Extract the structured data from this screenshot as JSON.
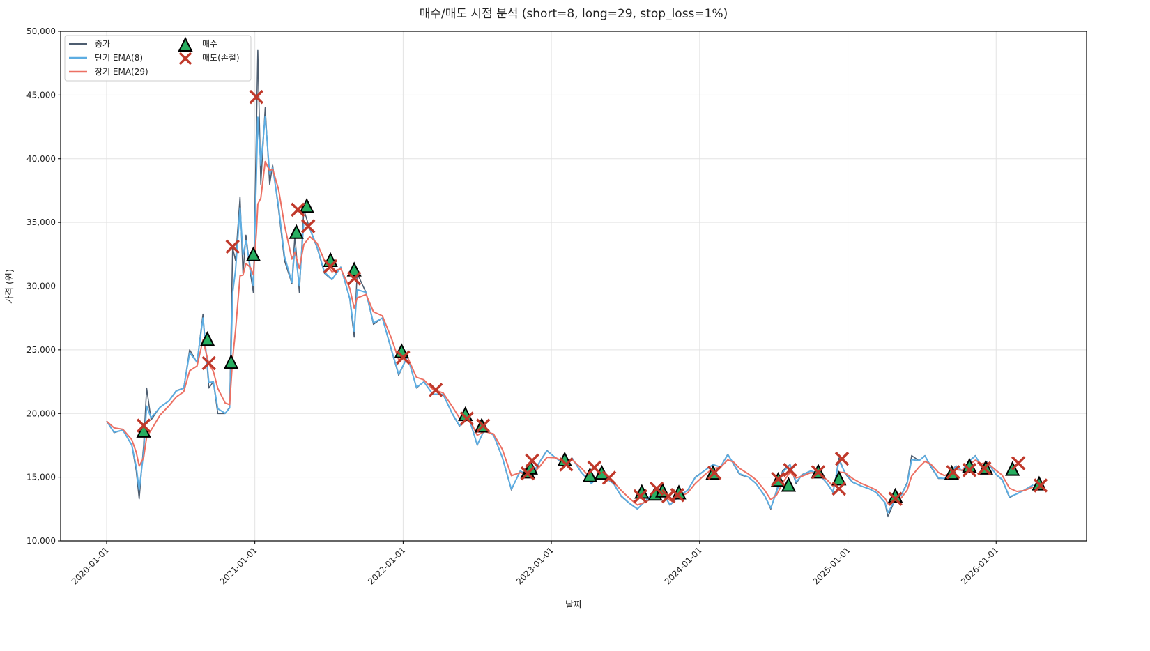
{
  "chart_data": {
    "type": "line",
    "title": "매수/매도 시점 분석 (short=8, long=29, stop_loss=1%)",
    "xlabel": "날짜",
    "ylabel": "가격 (원)",
    "ylim": [
      10000,
      50000
    ],
    "xlim": [
      2019.69,
      2026.61
    ],
    "yticks": [
      10000,
      15000,
      20000,
      25000,
      30000,
      35000,
      40000,
      45000,
      50000
    ],
    "ytick_labels": [
      "10,000",
      "15,000",
      "20,000",
      "25,000",
      "30,000",
      "35,000",
      "40,000",
      "45,000",
      "50,000"
    ],
    "xticks": [
      2020,
      2021,
      2022,
      2023,
      2024,
      2025,
      2026
    ],
    "xtick_labels": [
      "2020-01-01",
      "2021-01-01",
      "2022-01-01",
      "2023-01-01",
      "2024-01-01",
      "2025-01-01",
      "2026-01-01"
    ],
    "grid": true,
    "legend_placement": "top-left",
    "legend": {
      "close": "종가",
      "short": "단기 EMA(8)",
      "long": "장기 EMA(29)",
      "buy": "매수",
      "sell": "매도(손절)"
    },
    "ema_spans": {
      "short": 8,
      "long": 29
    },
    "colors": {
      "close": "#4d5d70",
      "short": "#5dade2",
      "long": "#ec7063",
      "buy": "#27ae60",
      "sell": "#c0392b"
    },
    "close": {
      "x": [
        2020.0,
        2020.05,
        2020.11,
        2020.17,
        2020.2,
        2020.22,
        2020.25,
        2020.27,
        2020.3,
        2020.36,
        2020.42,
        2020.47,
        2020.52,
        2020.56,
        2020.61,
        2020.65,
        2020.69,
        2020.72,
        2020.75,
        2020.8,
        2020.83,
        2020.85,
        2020.87,
        2020.9,
        2020.92,
        2020.94,
        2020.97,
        2020.99,
        2021.01,
        2021.02,
        2021.04,
        2021.07,
        2021.1,
        2021.12,
        2021.16,
        2021.2,
        2021.25,
        2021.27,
        2021.3,
        2021.33,
        2021.37,
        2021.42,
        2021.47,
        2021.52,
        2021.58,
        2021.64,
        2021.67,
        2021.69,
        2021.75,
        2021.8,
        2021.86,
        2021.92,
        2021.97,
        2022.03,
        2022.09,
        2022.14,
        2022.2,
        2022.27,
        2022.33,
        2022.38,
        2022.44,
        2022.5,
        2022.55,
        2022.61,
        2022.67,
        2022.73,
        2022.79,
        2022.86,
        2022.92,
        2022.97,
        2023.03,
        2023.09,
        2023.14,
        2023.2,
        2023.27,
        2023.33,
        2023.42,
        2023.47,
        2023.52,
        2023.58,
        2023.64,
        2023.69,
        2023.75,
        2023.8,
        2023.86,
        2023.92,
        2023.97,
        2024.03,
        2024.09,
        2024.14,
        2024.19,
        2024.23,
        2024.27,
        2024.33,
        2024.38,
        2024.44,
        2024.48,
        2024.52,
        2024.56,
        2024.61,
        2024.65,
        2024.69,
        2024.75,
        2024.8,
        2024.86,
        2024.9,
        2024.94,
        2024.98,
        2025.03,
        2025.09,
        2025.14,
        2025.19,
        2025.25,
        2025.27,
        2025.32,
        2025.36,
        2025.4,
        2025.43,
        2025.48,
        2025.52,
        2025.56,
        2025.61,
        2025.65,
        2025.69,
        2025.73,
        2025.77,
        2025.82,
        2025.86,
        2025.9,
        2025.94,
        2026.0,
        2026.04,
        2026.09,
        2026.14,
        2026.19,
        2026.25
      ],
      "y": [
        19400,
        18500,
        18700,
        17500,
        15500,
        13300,
        17500,
        22000,
        19500,
        20500,
        21000,
        21800,
        22000,
        25000,
        24000,
        27800,
        22000,
        22500,
        20000,
        20000,
        20500,
        33000,
        32000,
        37000,
        31000,
        34000,
        31000,
        29500,
        42000,
        48500,
        38000,
        44000,
        38000,
        39500,
        36000,
        32000,
        30200,
        34000,
        29500,
        36000,
        34500,
        33000,
        31000,
        30500,
        31500,
        29000,
        26000,
        31000,
        29500,
        27000,
        27500,
        25000,
        23000,
        24500,
        22000,
        22500,
        21500,
        21500,
        20000,
        19000,
        19800,
        17500,
        18800,
        18300,
        16500,
        14000,
        15500,
        15000,
        16200,
        17100,
        16500,
        16000,
        16500,
        15400,
        14500,
        15200,
        14500,
        13500,
        13000,
        12500,
        13200,
        13800,
        13800,
        12800,
        13500,
        14000,
        15000,
        15500,
        16000,
        15800,
        16800,
        16000,
        15200,
        15000,
        14500,
        13500,
        12500,
        14000,
        15500,
        16000,
        14500,
        15200,
        15500,
        15300,
        14500,
        13800,
        16500,
        15300,
        14600,
        14300,
        14100,
        13800,
        13000,
        11900,
        13300,
        13600,
        14600,
        16700,
        16300,
        16700,
        15800,
        14900,
        14900,
        15400,
        15900,
        15500,
        16300,
        16700,
        15800,
        16200,
        15200,
        14800,
        13400,
        13700,
        14000,
        14400
      ]
    },
    "buy_signals": {
      "x": [
        2020.25,
        2020.68,
        2020.84,
        2020.99,
        2021.28,
        2021.35,
        2021.51,
        2021.67,
        2021.99,
        2022.42,
        2022.53,
        2022.84,
        2022.86,
        2023.09,
        2023.26,
        2023.34,
        2023.61,
        2023.7,
        2023.75,
        2023.86,
        2024.09,
        2024.53,
        2024.6,
        2024.8,
        2024.94,
        2025.32,
        2025.7,
        2025.82,
        2025.93,
        2026.11,
        2026.29
      ],
      "y": [
        18600,
        25800,
        24000,
        32450,
        34200,
        36250,
        32000,
        31250,
        24850,
        19900,
        19000,
        15400,
        15700,
        16350,
        15100,
        15300,
        13800,
        13650,
        13900,
        13750,
        15300,
        14750,
        14350,
        15400,
        14850,
        13500,
        15300,
        15850,
        15700,
        15600,
        14450
      ]
    },
    "sell_signals": {
      "x": [
        2020.25,
        2020.69,
        2020.85,
        2021.01,
        2021.29,
        2021.36,
        2021.51,
        2021.67,
        2022.0,
        2022.22,
        2022.43,
        2022.54,
        2022.84,
        2022.87,
        2023.1,
        2023.29,
        2023.39,
        2023.6,
        2023.71,
        2023.79,
        2023.85,
        2024.1,
        2024.53,
        2024.61,
        2024.8,
        2024.94,
        2024.96,
        2025.32,
        2025.71,
        2025.82,
        2025.92,
        2026.15,
        2026.3
      ],
      "y": [
        19050,
        23950,
        33100,
        44850,
        36000,
        34700,
        31550,
        30600,
        24400,
        21850,
        19600,
        19050,
        15300,
        16300,
        16000,
        15750,
        14950,
        13500,
        14100,
        13500,
        13600,
        15350,
        14850,
        15570,
        15400,
        14100,
        16450,
        13300,
        15400,
        15570,
        15700,
        16100,
        14350
      ]
    }
  }
}
